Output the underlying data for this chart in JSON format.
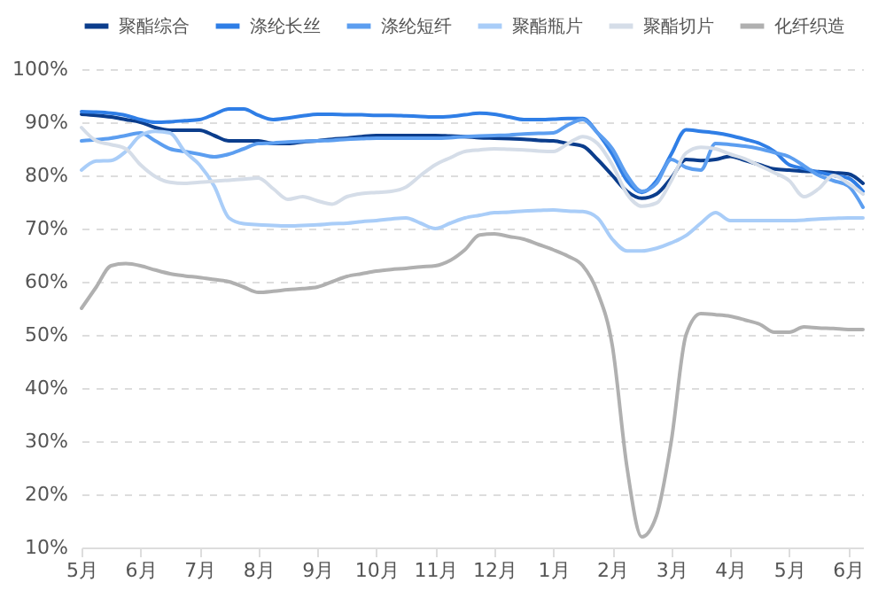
{
  "chart_data": {
    "type": "line",
    "categories": [
      "5月",
      null,
      null,
      null,
      "6月",
      null,
      null,
      null,
      "7月",
      null,
      null,
      null,
      "8月",
      null,
      null,
      null,
      "9月",
      null,
      null,
      null,
      "10月",
      null,
      null,
      null,
      "11月",
      null,
      null,
      null,
      "12月",
      null,
      null,
      null,
      "1月",
      null,
      null,
      null,
      "2月",
      null,
      null,
      null,
      "3月",
      null,
      null,
      null,
      "4月",
      null,
      null,
      null,
      "5月",
      null,
      null,
      null,
      "6月",
      null
    ],
    "ylim": [
      10,
      100
    ],
    "yticks": [
      {
        "value": 10,
        "label": "10%"
      },
      {
        "value": 20,
        "label": "20%"
      },
      {
        "value": 30,
        "label": "30%"
      },
      {
        "value": 40,
        "label": "40%"
      },
      {
        "value": 50,
        "label": "50%"
      },
      {
        "value": 60,
        "label": "60%"
      },
      {
        "value": 70,
        "label": "70%"
      },
      {
        "value": 80,
        "label": "80%"
      },
      {
        "value": 90,
        "label": "90%"
      },
      {
        "value": 100,
        "label": "100%"
      }
    ],
    "grid": "y",
    "legend": "top",
    "line_style": "solid",
    "series": [
      {
        "name": "聚酯综合",
        "color": "#0b3d8c",
        "values": [
          91.5,
          91.3,
          91,
          90.5,
          90,
          89,
          88.5,
          88.5,
          88.5,
          87.5,
          86.5,
          86.5,
          86.5,
          86,
          86,
          86.3,
          86.5,
          86.8,
          87,
          87.3,
          87.5,
          87.5,
          87.5,
          87.5,
          87.5,
          87.4,
          87.3,
          87.1,
          87,
          86.9,
          86.8,
          86.6,
          86.5,
          86,
          85.5,
          83,
          80,
          77,
          75.7,
          76.5,
          79.5,
          83,
          82.8,
          83,
          83.6,
          82.8,
          82,
          81.2,
          81,
          80.8,
          80.7,
          80.5,
          80.3,
          78.5
        ]
      },
      {
        "name": "涤纶长丝",
        "color": "#2f7ee6",
        "values": [
          92,
          91.9,
          91.7,
          91.3,
          90.5,
          90,
          90.1,
          90.3,
          90.5,
          91.5,
          92.5,
          92.5,
          91.3,
          90.5,
          90.8,
          91.2,
          91.5,
          91.5,
          91.4,
          91.4,
          91.3,
          91.3,
          91.2,
          91.1,
          91,
          91.1,
          91.4,
          91.7,
          91.5,
          91,
          90.5,
          90.5,
          90.6,
          90.7,
          90.7,
          88,
          84,
          79,
          76.8,
          79,
          84,
          88.6,
          88.3,
          88,
          87.5,
          86.8,
          86,
          84.5,
          82,
          81.3,
          80.6,
          80,
          79.5,
          77
        ]
      },
      {
        "name": "涤纶短纤",
        "color": "#5c9ef0",
        "values": [
          86.5,
          86.7,
          87,
          87.5,
          88,
          86.5,
          85,
          84.5,
          84,
          83.5,
          84,
          85,
          86,
          86.1,
          86.3,
          86.4,
          86.5,
          86.6,
          86.8,
          86.9,
          87,
          87,
          87,
          87,
          87,
          87.1,
          87.3,
          87.4,
          87.5,
          87.6,
          87.8,
          87.9,
          88,
          89.5,
          90.5,
          88,
          85,
          80,
          77,
          78.5,
          83,
          81.5,
          81,
          86,
          85.8,
          85.5,
          85,
          84.3,
          83.5,
          81.8,
          80,
          79,
          78,
          74
        ]
      },
      {
        "name": "聚酯瓶片",
        "color": "#a9cdf8",
        "values": [
          81,
          82.7,
          82.8,
          84.5,
          87.5,
          88.3,
          88,
          84.5,
          82,
          78,
          72,
          70.9,
          70.7,
          70.6,
          70.5,
          70.6,
          70.7,
          70.9,
          71,
          71.3,
          71.5,
          71.8,
          72,
          71,
          70,
          71,
          72,
          72.5,
          73,
          73.1,
          73.3,
          73.4,
          73.5,
          73.3,
          73.2,
          72,
          68,
          65.8,
          65.8,
          66.3,
          67.3,
          68.7,
          71,
          73,
          71.5,
          71.5,
          71.5,
          71.5,
          71.5,
          71.6,
          71.8,
          71.9,
          72,
          72
        ]
      },
      {
        "name": "聚酯切片",
        "color": "#d5dde8",
        "values": [
          89,
          86.5,
          85.8,
          85,
          82,
          79.8,
          78.7,
          78.5,
          78.7,
          78.9,
          79.1,
          79.3,
          79.5,
          77.5,
          75.5,
          76,
          75.2,
          74.6,
          76,
          76.6,
          76.8,
          77,
          77.8,
          80,
          82,
          83.3,
          84.5,
          84.8,
          85,
          84.9,
          84.8,
          84.6,
          84.5,
          86,
          87.3,
          86,
          82,
          76.5,
          74.2,
          74.8,
          79,
          84.2,
          85.3,
          85,
          84,
          83.1,
          81.8,
          80.5,
          79,
          76,
          77.5,
          80,
          78.5,
          76.5
        ]
      },
      {
        "name": "化纤织造",
        "color": "#b0b0b0",
        "values": [
          55,
          59,
          63,
          63.4,
          63,
          62.2,
          61.5,
          61.1,
          60.8,
          60.4,
          60,
          59,
          58,
          58.2,
          58.5,
          58.7,
          59,
          60,
          61,
          61.5,
          62,
          62.3,
          62.5,
          62.8,
          63,
          64,
          66,
          68.8,
          69,
          68.5,
          68,
          67,
          66,
          64.8,
          63,
          58,
          48,
          25,
          12,
          16,
          30,
          50,
          54,
          53.8,
          53.5,
          52.8,
          52,
          50.5,
          50.5,
          51.5,
          51.3,
          51.2,
          51,
          51
        ]
      }
    ]
  }
}
